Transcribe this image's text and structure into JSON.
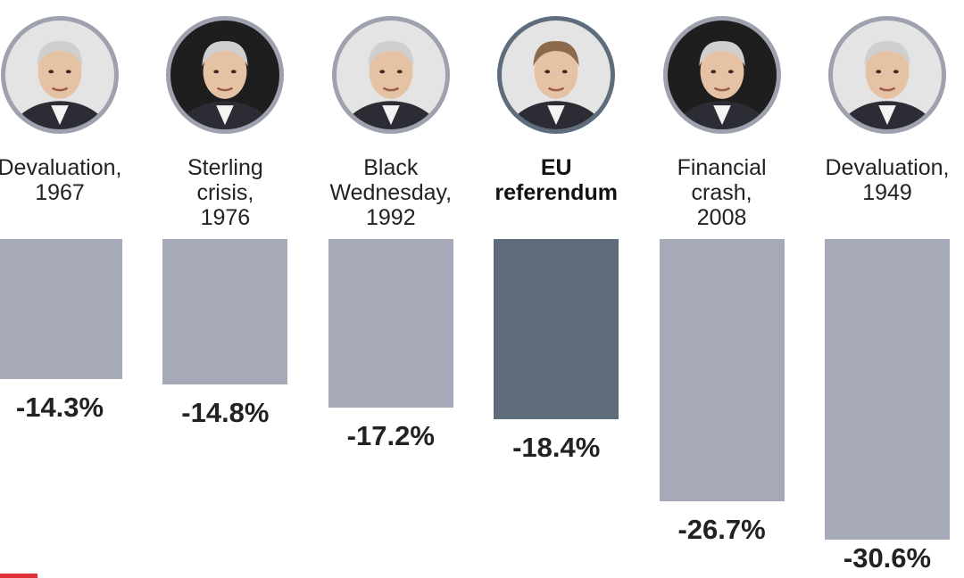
{
  "chart_data": {
    "type": "bar",
    "orientation": "vertical-downward",
    "categories": [
      "Devaluation,\n1967",
      "Sterling\ncrisis,\n1976",
      "Black\nWednesday,\n1992",
      "EU\nreferendum",
      "Financial\ncrash,\n2008",
      "Devaluation,\n1949"
    ],
    "values": [
      -14.3,
      -14.8,
      -17.2,
      -18.4,
      -26.7,
      -30.6
    ],
    "value_labels": [
      "-14.3%",
      "-14.8%",
      "-17.2%",
      "-18.4%",
      "-26.7%",
      "-30.6%"
    ],
    "highlight_index": 3,
    "ylim": [
      -30.6,
      0
    ],
    "grid": false,
    "legend": "none",
    "colors": {
      "bar": "#a6a9b8",
      "highlight": "#5f6c7c",
      "accent": "#e0313b"
    }
  },
  "portraits": [
    {
      "icon": "portrait-photo-icon",
      "background": "light"
    },
    {
      "icon": "portrait-photo-icon",
      "background": "dark"
    },
    {
      "icon": "portrait-photo-icon",
      "background": "light"
    },
    {
      "icon": "portrait-photo-icon",
      "background": "light"
    },
    {
      "icon": "portrait-photo-icon",
      "background": "dark"
    },
    {
      "icon": "portrait-photo-icon",
      "background": "light"
    }
  ]
}
